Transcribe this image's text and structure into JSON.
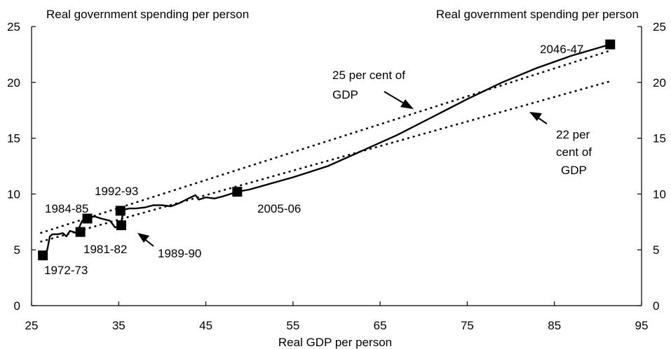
{
  "chart_data": {
    "type": "line",
    "left_axis_title": "Real government spending per person",
    "right_axis_title": "Real government spending per person",
    "xlabel": "Real GDP per person",
    "xlim": [
      25,
      95
    ],
    "ylim": [
      0,
      25
    ],
    "x_ticks": [
      "25",
      "35",
      "45",
      "55",
      "65",
      "75",
      "85",
      "95"
    ],
    "y_ticks": [
      "0",
      "5",
      "10",
      "15",
      "20",
      "25"
    ],
    "grid": false,
    "series": [
      {
        "x": [
          26.3,
          26.8,
          27.1,
          27.4,
          28.0,
          28.6,
          29.0,
          29.4,
          30.2,
          30.8,
          31.4,
          32.2,
          33.0,
          34.0,
          34.6,
          35.2,
          35.6,
          36.2,
          37.0,
          38.0,
          39.0,
          40.0,
          41.0,
          42.0,
          43.0,
          43.8,
          44.2,
          45.0,
          46.0,
          47.0,
          48.6,
          50.0,
          55.0,
          59.0,
          63.0,
          67.0,
          71.0,
          75.0,
          79.0,
          83.0,
          87.0,
          91.4
        ],
        "y": [
          4.5,
          5.0,
          6.2,
          6.4,
          6.4,
          6.5,
          6.2,
          6.7,
          6.5,
          7.6,
          7.8,
          8.0,
          7.8,
          7.6,
          7.0,
          7.2,
          8.6,
          8.7,
          8.7,
          8.8,
          9.0,
          9.0,
          8.9,
          9.2,
          9.6,
          9.9,
          9.5,
          9.7,
          9.6,
          9.8,
          10.2,
          10.4,
          11.5,
          12.5,
          13.9,
          15.3,
          16.9,
          18.5,
          20.0,
          21.3,
          22.4,
          23.4
        ]
      }
    ],
    "markers": [
      {
        "label": "1972-73",
        "x": 26.3,
        "y": 4.5
      },
      {
        "label": "",
        "x": 30.6,
        "y": 6.6
      },
      {
        "label": "1984-85",
        "x": 31.4,
        "y": 7.8
      },
      {
        "label": "1992-93",
        "x": 35.2,
        "y": 8.5
      },
      {
        "label": "1981-82",
        "x": 35.3,
        "y": 7.2
      },
      {
        "label": "2005-06",
        "x": 48.6,
        "y": 10.2
      },
      {
        "label": "2046-47",
        "x": 91.4,
        "y": 23.4
      }
    ],
    "reference_lines": [
      {
        "share_of_gdp": 0.25,
        "x": [
          26.0,
          91.4
        ],
        "y": [
          6.5,
          22.85
        ]
      },
      {
        "share_of_gdp": 0.22,
        "x": [
          26.0,
          91.4
        ],
        "y": [
          5.72,
          20.1
        ]
      }
    ],
    "annotations": [
      {
        "lines": [
          "25 per cent of",
          "GDP"
        ]
      },
      {
        "lines": [
          "22 per",
          "cent of",
          "GDP"
        ]
      },
      {
        "lines": [
          "1989-90"
        ]
      }
    ]
  }
}
